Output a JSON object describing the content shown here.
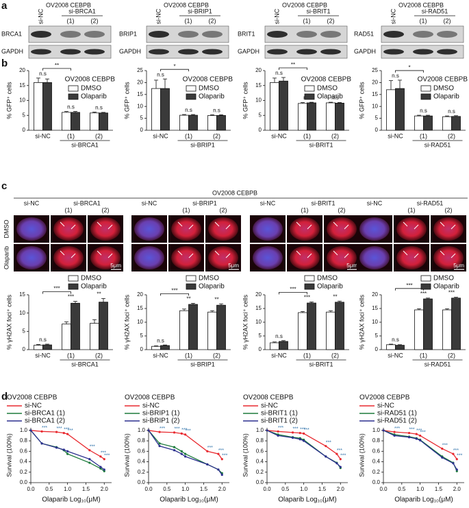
{
  "panel_labels": [
    "a",
    "b",
    "c",
    "d"
  ],
  "blots": [
    {
      "title": "OV2008 CEBPB",
      "lanes": [
        "si-NC",
        "si-BRCA1",
        "(1)",
        "(2)"
      ],
      "rows": [
        "BRCA1",
        "GAPDH"
      ]
    },
    {
      "title": "OV2008 CEBPB",
      "lanes": [
        "si-NC",
        "si-BRIP1",
        "(1)",
        "(2)"
      ],
      "rows": [
        "BRIP1",
        "GAPDH"
      ]
    },
    {
      "title": "OV2008 CEBPB",
      "lanes": [
        "si-NC",
        "si-BRIT1",
        "(1)",
        "(2)"
      ],
      "rows": [
        "BRIT1",
        "GAPDH"
      ]
    },
    {
      "title": "OV2008 CEBPB",
      "lanes": [
        "si-NC",
        "si-RAD51",
        "(1)",
        "(2)"
      ],
      "rows": [
        "RAD51",
        "GAPDH"
      ]
    }
  ],
  "micrographs": {
    "title": "OV2008 CEBPB",
    "rows": [
      "DMSO",
      "Olaparib"
    ],
    "groups": [
      {
        "control": "si-NC",
        "target": "si-BRCA1",
        "subs": [
          "(1)",
          "(2)"
        ],
        "scale": "5μm"
      },
      {
        "control": "si-NC",
        "target": "si-BRIP1",
        "subs": [
          "(1)",
          "(2)"
        ],
        "scale": "5μm"
      },
      {
        "control": "si-NC",
        "target": "si-BRIT1",
        "subs": [
          "(1)",
          "(2)"
        ],
        "scale": "5μm"
      },
      {
        "control": "si-NC",
        "target": "si-RAD51",
        "subs": [
          "(1)",
          "(2)"
        ],
        "scale": "5μm"
      }
    ]
  },
  "chart_data": [
    {
      "type": "bar",
      "legend_title": "OV2008 CEBPB",
      "ylabel": "% GFP⁺ cells",
      "categories": [
        "si-NC",
        "(1)",
        "(2)"
      ],
      "group_label": "si-BRCA1",
      "series": [
        {
          "name": "DMSO",
          "color": "#ffffff",
          "values": [
            16,
            6,
            5.8
          ],
          "errors": [
            1.5,
            0.3,
            0.3
          ]
        },
        {
          "name": "Olaparib",
          "color": "#3a3a3a",
          "values": [
            16,
            6,
            5.8
          ],
          "errors": [
            1.2,
            0.3,
            0.2
          ]
        }
      ],
      "ylim": [
        0,
        20
      ],
      "yticks": [
        0,
        5,
        10,
        15,
        20
      ],
      "significance": [
        "n.s",
        "n.s",
        "n.s"
      ],
      "bracket": "**"
    },
    {
      "type": "bar",
      "legend_title": "OV2008 CEBPB",
      "ylabel": "% GFP⁺ cells",
      "categories": [
        "si-NC",
        "(1)",
        "(2)"
      ],
      "group_label": "si-BRIP1",
      "series": [
        {
          "name": "DMSO",
          "color": "#ffffff",
          "values": [
            17.5,
            6.3,
            6.2
          ],
          "errors": [
            3.5,
            0.3,
            0.3
          ]
        },
        {
          "name": "Olaparib",
          "color": "#3a3a3a",
          "values": [
            17.5,
            6.3,
            6.2
          ],
          "errors": [
            4,
            0.3,
            0.3
          ]
        }
      ],
      "ylim": [
        0,
        25
      ],
      "yticks": [
        0,
        5,
        10,
        15,
        20,
        25
      ],
      "significance": [
        "n.s",
        "n.s",
        "n.s"
      ],
      "bracket": "*"
    },
    {
      "type": "bar",
      "legend_title": "OV2008 CEBPB",
      "ylabel": "% GFP⁺ cells",
      "categories": [
        "si-NC",
        "(1)",
        "(2)"
      ],
      "group_label": "si-BRIT1",
      "series": [
        {
          "name": "DMSO",
          "color": "#ffffff",
          "values": [
            16,
            9,
            9.2
          ],
          "errors": [
            1.5,
            0.3,
            0.2
          ]
        },
        {
          "name": "Olaparib",
          "color": "#3a3a3a",
          "values": [
            16.5,
            9.2,
            9.1
          ],
          "errors": [
            1.2,
            0.2,
            0.2
          ]
        }
      ],
      "ylim": [
        0,
        20
      ],
      "yticks": [
        0,
        5,
        10,
        15,
        20
      ],
      "significance": [
        "n.s",
        "n.s",
        "n.s"
      ],
      "bracket": "**"
    },
    {
      "type": "bar",
      "legend_title": "OV2008 CEBPB",
      "ylabel": "% GFP⁺ cells",
      "categories": [
        "si-NC",
        "(1)",
        "(2)"
      ],
      "group_label": "si-RAD51",
      "series": [
        {
          "name": "DMSO",
          "color": "#ffffff",
          "values": [
            17,
            6,
            5.7
          ],
          "errors": [
            3.8,
            0.3,
            0.3
          ]
        },
        {
          "name": "Olaparib",
          "color": "#3a3a3a",
          "values": [
            17.5,
            6,
            5.8
          ],
          "errors": [
            3.5,
            0.3,
            0.3
          ]
        }
      ],
      "ylim": [
        0,
        25
      ],
      "yticks": [
        0,
        5,
        10,
        15,
        20,
        25
      ],
      "significance": [
        "n.s",
        "n.s",
        "n.s"
      ],
      "bracket": "*"
    },
    {
      "type": "bar",
      "ylabel": "% γH2AX foci⁺ cells",
      "categories": [
        "si-NC",
        "(1)",
        "(2)"
      ],
      "group_label": "si-BRCA1",
      "series": [
        {
          "name": "DMSO",
          "color": "#ffffff",
          "values": [
            1.2,
            7,
            7.2
          ],
          "errors": [
            0.2,
            0.6,
            1
          ]
        },
        {
          "name": "Olaparib",
          "color": "#3a3a3a",
          "values": [
            1.3,
            12.7,
            13
          ],
          "errors": [
            0.2,
            0.5,
            1
          ]
        }
      ],
      "ylim": [
        0,
        15
      ],
      "yticks": [
        0,
        5,
        10,
        15
      ],
      "significance": [
        "n.s",
        "***",
        "**"
      ],
      "bracket": "***"
    },
    {
      "type": "bar",
      "ylabel": "% γH2AX foci⁺ cells",
      "categories": [
        "si-NC",
        "(1)",
        "(2)"
      ],
      "group_label": "si-BRIP1",
      "series": [
        {
          "name": "DMSO",
          "color": "#ffffff",
          "values": [
            1.2,
            14.2,
            13.7
          ],
          "errors": [
            0.2,
            0.6,
            0.5
          ]
        },
        {
          "name": "Olaparib",
          "color": "#3a3a3a",
          "values": [
            1.5,
            16.5,
            16.2
          ],
          "errors": [
            0.2,
            0.4,
            0.5
          ]
        }
      ],
      "ylim": [
        0,
        20
      ],
      "yticks": [
        0,
        5,
        10,
        15,
        20
      ],
      "significance": [
        "n.s",
        "**",
        "**"
      ],
      "bracket": "***"
    },
    {
      "type": "bar",
      "ylabel": "% γH2AX foci⁺ cells",
      "categories": [
        "si-NC",
        "(1)",
        "(2)"
      ],
      "group_label": "si-BRIT1",
      "series": [
        {
          "name": "DMSO",
          "color": "#ffffff",
          "values": [
            2.5,
            13.5,
            13.7
          ],
          "errors": [
            0.3,
            0.4,
            0.5
          ]
        },
        {
          "name": "Olaparib",
          "color": "#3a3a3a",
          "values": [
            3,
            17,
            17.3
          ],
          "errors": [
            0.3,
            0.4,
            0.4
          ]
        }
      ],
      "ylim": [
        0,
        20
      ],
      "yticks": [
        0,
        5,
        10,
        15,
        20
      ],
      "significance": [
        "n.s",
        "***",
        "**"
      ],
      "bracket": "***"
    },
    {
      "type": "bar",
      "ylabel": "% γH2AX foci⁺ cells",
      "categories": [
        "si-NC",
        "(1)",
        "(2)"
      ],
      "group_label": "si-RAD51",
      "series": [
        {
          "name": "DMSO",
          "color": "#ffffff",
          "values": [
            1.8,
            14.5,
            14.5
          ],
          "errors": [
            0.2,
            0.4,
            0.4
          ]
        },
        {
          "name": "Olaparib",
          "color": "#3a3a3a",
          "values": [
            1.6,
            18.5,
            18.8
          ],
          "errors": [
            0.2,
            0.3,
            0.3
          ]
        }
      ],
      "ylim": [
        0,
        20
      ],
      "yticks": [
        0,
        5,
        10,
        15,
        20
      ],
      "significance": [
        "n.s",
        "***",
        "***"
      ],
      "bracket": "***"
    },
    {
      "type": "line",
      "title": "OV2008 CEBPB",
      "xlabel": "Olaparib Log₁₀(μM)",
      "ylabel": "Survival (100%)",
      "x": [
        0,
        0.3,
        0.7,
        0.9,
        1.0,
        1.6,
        1.9,
        2.0
      ],
      "series": [
        {
          "name": "si-NC",
          "color": "#e8282e",
          "values": [
            1.0,
            0.98,
            0.97,
            0.95,
            0.93,
            0.62,
            0.5,
            0.45
          ]
        },
        {
          "name": "si-BRCA1 (1)",
          "color": "#1b7a3a",
          "values": [
            1.0,
            0.75,
            0.68,
            0.62,
            0.55,
            0.38,
            0.27,
            0.22
          ]
        },
        {
          "name": "si-BRCA1 (2)",
          "color": "#2b2f8f",
          "values": [
            1.0,
            0.75,
            0.67,
            0.63,
            0.6,
            0.45,
            0.3,
            0.25
          ]
        }
      ],
      "xlim": [
        0,
        2.2
      ],
      "xticks": [
        {
          "value": 0,
          "label": "0.0"
        },
        0.5,
        {
          "value": 1,
          "label": "1.0"
        },
        1.5,
        {
          "value": 2,
          "label": "2.0"
        }
      ],
      "ylim": [
        0,
        1.05
      ],
      "yticks": [
        {
          "value": 0,
          "label": "0.0"
        },
        0.2,
        0.4,
        0.6,
        0.8,
        {
          "value": 1,
          "label": "1.0"
        }
      ],
      "point_labels": [
        null,
        "***",
        "***",
        "***",
        "***",
        "***",
        "***",
        "***"
      ],
      "label_color": "#2b6fa8"
    },
    {
      "type": "line",
      "title": "OV2008 CEBPB",
      "xlabel": "Olaparib Log₁₀(μM)",
      "ylabel": "Survival (100%)",
      "x": [
        0,
        0.3,
        0.7,
        0.9,
        1.0,
        1.6,
        1.9,
        2.0
      ],
      "series": [
        {
          "name": "si-NC",
          "color": "#e8282e",
          "values": [
            1.0,
            0.97,
            0.96,
            0.94,
            0.92,
            0.6,
            0.55,
            0.45
          ]
        },
        {
          "name": "si-BRIP1 (1)",
          "color": "#1b7a3a",
          "values": [
            1.0,
            0.75,
            0.68,
            0.6,
            0.55,
            0.35,
            0.25,
            0.18
          ]
        },
        {
          "name": "si-BRIP1 (2)",
          "color": "#2b2f8f",
          "values": [
            1.0,
            0.7,
            0.62,
            0.55,
            0.5,
            0.35,
            0.25,
            0.15
          ]
        }
      ],
      "xlim": [
        0,
        2.2
      ],
      "xticks": [
        {
          "value": 0,
          "label": "0.0"
        },
        0.5,
        {
          "value": 1,
          "label": "1.0"
        },
        1.5,
        {
          "value": 2,
          "label": "2.0"
        }
      ],
      "ylim": [
        0,
        1.05
      ],
      "yticks": [
        {
          "value": 0,
          "label": "0.0"
        },
        0.2,
        0.4,
        0.6,
        0.8,
        {
          "value": 1,
          "label": "1.0"
        }
      ],
      "point_labels": [
        null,
        "***",
        "***",
        "***",
        "***",
        "***",
        "***",
        "***"
      ],
      "label_color": "#2b6fa8"
    },
    {
      "type": "line",
      "title": "OV2008 CEBPB",
      "xlabel": "Olaparib Log₁₀(μM)",
      "ylabel": "Survival (100%)",
      "x": [
        0,
        0.3,
        0.7,
        0.9,
        1.0,
        1.6,
        1.9,
        2.0
      ],
      "series": [
        {
          "name": "si-NC",
          "color": "#e8282e",
          "values": [
            1.0,
            0.98,
            0.96,
            0.95,
            0.94,
            0.7,
            0.55,
            0.45
          ]
        },
        {
          "name": "si-BRIT1 (1)",
          "color": "#1b7a3a",
          "values": [
            1.0,
            0.92,
            0.87,
            0.85,
            0.82,
            0.5,
            0.38,
            0.28
          ]
        },
        {
          "name": "si-BRIT1 (2)",
          "color": "#2b2f8f",
          "values": [
            1.0,
            0.9,
            0.86,
            0.83,
            0.8,
            0.5,
            0.37,
            0.3
          ]
        }
      ],
      "xlim": [
        0,
        2.2
      ],
      "xticks": [
        {
          "value": 0,
          "label": "0.0"
        },
        0.5,
        {
          "value": 1,
          "label": "1.0"
        },
        1.5,
        {
          "value": 2,
          "label": "2.0"
        }
      ],
      "ylim": [
        0,
        1.05
      ],
      "yticks": [
        {
          "value": 0,
          "label": "0.0"
        },
        0.2,
        0.4,
        0.6,
        0.8,
        {
          "value": 1,
          "label": "1.0"
        }
      ],
      "point_labels": [
        null,
        "***",
        "***",
        "***",
        "***",
        "***",
        "***",
        "***"
      ],
      "label_color": "#2b6fa8"
    },
    {
      "type": "line",
      "title": "OV2008 CEBPB",
      "xlabel": "Olaparib Log₁₀(μM)",
      "ylabel": "Survival (100%)",
      "x": [
        0,
        0.3,
        0.7,
        0.9,
        1.0,
        1.6,
        1.9,
        2.0
      ],
      "series": [
        {
          "name": "si-NC",
          "color": "#e8282e",
          "values": [
            1.0,
            0.97,
            0.95,
            0.93,
            0.9,
            0.65,
            0.55,
            0.45
          ]
        },
        {
          "name": "si-RAD51 (1)",
          "color": "#1b7a3a",
          "values": [
            1.0,
            0.92,
            0.88,
            0.85,
            0.82,
            0.5,
            0.38,
            0.22
          ]
        },
        {
          "name": "si-RAD51 (2)",
          "color": "#2b2f8f",
          "values": [
            1.0,
            0.9,
            0.87,
            0.84,
            0.81,
            0.48,
            0.37,
            0.25
          ]
        }
      ],
      "xlim": [
        0,
        2.2
      ],
      "xticks": [
        {
          "value": 0,
          "label": "0.0"
        },
        0.5,
        {
          "value": 1,
          "label": "1.0"
        },
        1.5,
        {
          "value": 2,
          "label": "2.0"
        }
      ],
      "ylim": [
        0,
        1.05
      ],
      "yticks": [
        {
          "value": 0,
          "label": "0.0"
        },
        0.2,
        0.4,
        0.6,
        0.8,
        {
          "value": 1,
          "label": "1.0"
        }
      ],
      "point_labels": [
        null,
        "***",
        "***",
        "***",
        "***",
        "***",
        "***",
        "***"
      ],
      "label_color": "#2b6fa8"
    }
  ]
}
